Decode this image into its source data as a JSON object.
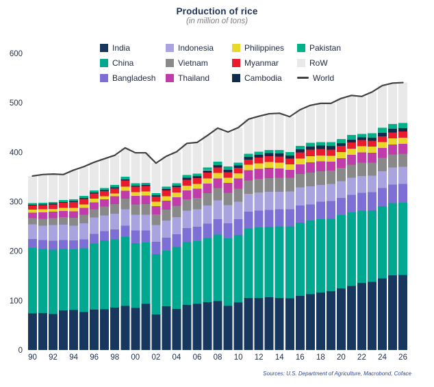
{
  "title": "Production of rice",
  "subtitle": "(in million of tons)",
  "source": "Sources: U.S. Department of Agriculture, Macrobond, Coface",
  "legend": [
    {
      "label": "India",
      "color": "#17375e",
      "type": "swatch"
    },
    {
      "label": "Indonesia",
      "color": "#a9a4e0",
      "type": "swatch"
    },
    {
      "label": "Philippines",
      "color": "#e8d829",
      "type": "swatch"
    },
    {
      "label": "Pakistan",
      "color": "#00b189",
      "type": "swatch"
    },
    {
      "label": "China",
      "color": "#00a88f",
      "type": "swatch"
    },
    {
      "label": "Vietnam",
      "color": "#898989",
      "type": "swatch"
    },
    {
      "label": "Myanmar",
      "color": "#e91c2e",
      "type": "swatch"
    },
    {
      "label": "RoW",
      "color": "#e9e9e9",
      "type": "swatch"
    },
    {
      "label": "Bangladesh",
      "color": "#7d6fd6",
      "type": "swatch"
    },
    {
      "label": "Thailand",
      "color": "#c03cab",
      "type": "swatch"
    },
    {
      "label": "Cambodia",
      "color": "#0f2b4c",
      "type": "swatch"
    },
    {
      "label": "World",
      "color": "#404040",
      "type": "line"
    }
  ],
  "chart_data": {
    "type": "bar",
    "stacked": true,
    "title": "Production of rice",
    "subtitle": "(in million of tons)",
    "ylabel": "",
    "xlabel": "",
    "ylim": [
      0,
      600
    ],
    "yticks": [
      0,
      100,
      200,
      300,
      400,
      500,
      600
    ],
    "grid": false,
    "legend_position": "top",
    "x": [
      1990,
      1991,
      1992,
      1993,
      1994,
      1995,
      1996,
      1997,
      1998,
      1999,
      2000,
      2001,
      2002,
      2003,
      2004,
      2005,
      2006,
      2007,
      2008,
      2009,
      2010,
      2011,
      2012,
      2013,
      2014,
      2015,
      2016,
      2017,
      2018,
      2019,
      2020,
      2021,
      2022,
      2023,
      2024,
      2025,
      2026
    ],
    "x_tick_every": 2,
    "series": [
      {
        "name": "India",
        "color": "#17375e",
        "values": [
          74.3,
          74.7,
          72.6,
          80.3,
          81.2,
          77.0,
          81.7,
          82.5,
          86.1,
          89.7,
          85.0,
          93.3,
          71.8,
          88.5,
          83.1,
          91.8,
          93.4,
          96.7,
          99.2,
          89.1,
          96.0,
          105.3,
          105.2,
          106.6,
          105.5,
          104.4,
          109.7,
          112.8,
          116.5,
          118.9,
          124.4,
          129.5,
          135.8,
          137.8,
          145.0,
          151.0,
          152.0
        ]
      },
      {
        "name": "China",
        "color": "#00a88f",
        "values": [
          132.5,
          129.5,
          130.4,
          124.1,
          122.5,
          129.0,
          134.0,
          138.9,
          137.8,
          138.9,
          131.5,
          124.3,
          122.2,
          112.5,
          125.4,
          126.4,
          127.2,
          130.2,
          134.3,
          136.6,
          137.0,
          140.7,
          143.0,
          142.5,
          144.6,
          145.8,
          147.8,
          148.9,
          148.5,
          146.7,
          148.3,
          148.9,
          145.9,
          144.6,
          146.0,
          146.0,
          146.0
        ]
      },
      {
        "name": "Bangladesh",
        "color": "#7d6fd6",
        "values": [
          17.9,
          18.3,
          18.3,
          18.0,
          17.8,
          17.7,
          18.9,
          18.9,
          19.9,
          23.1,
          25.1,
          24.3,
          25.2,
          26.2,
          25.6,
          28.8,
          29.0,
          28.8,
          31.2,
          31.0,
          31.7,
          33.7,
          33.8,
          34.4,
          34.5,
          34.6,
          34.6,
          32.7,
          34.9,
          35.9,
          34.6,
          35.8,
          36.4,
          37.0,
          37.0,
          37.6,
          38.0
        ]
      },
      {
        "name": "Indonesia",
        "color": "#a9a4e0",
        "values": [
          29.4,
          29.0,
          31.4,
          31.0,
          30.3,
          33.0,
          33.2,
          32.1,
          32.0,
          33.4,
          32.4,
          32.0,
          33.4,
          35.0,
          34.8,
          34.9,
          35.3,
          37.0,
          38.3,
          36.4,
          35.5,
          36.5,
          36.6,
          36.3,
          35.6,
          36.2,
          36.9,
          37.0,
          34.2,
          34.7,
          34.5,
          34.4,
          34.0,
          33.0,
          34.0,
          34.5,
          34.6
        ]
      },
      {
        "name": "Vietnam",
        "color": "#898989",
        "values": [
          12.4,
          13.9,
          14.3,
          15.2,
          15.5,
          16.9,
          17.0,
          17.6,
          19.4,
          20.9,
          20.5,
          21.0,
          21.5,
          22.1,
          22.7,
          22.8,
          22.9,
          24.4,
          24.4,
          25.0,
          26.4,
          27.1,
          27.5,
          28.2,
          28.2,
          27.6,
          27.4,
          27.7,
          27.3,
          27.1,
          27.1,
          26.5,
          27.0,
          26.6,
          26.5,
          26.5,
          26.3
        ]
      },
      {
        "name": "Thailand",
        "color": "#c03cab",
        "values": [
          11.3,
          13.2,
          13.0,
          12.7,
          13.5,
          14.0,
          13.9,
          14.8,
          15.6,
          16.5,
          17.0,
          17.5,
          17.2,
          18.0,
          17.4,
          18.2,
          18.3,
          19.8,
          19.9,
          20.3,
          20.3,
          20.5,
          20.2,
          20.5,
          18.8,
          15.8,
          19.2,
          20.6,
          20.3,
          17.7,
          18.9,
          19.9,
          20.9,
          20.0,
          20.1,
          20.4,
          20.5
        ]
      },
      {
        "name": "Philippines",
        "color": "#e8d829",
        "values": [
          6.1,
          6.2,
          5.8,
          6.0,
          6.9,
          7.0,
          7.4,
          6.5,
          5.5,
          7.7,
          8.0,
          8.4,
          8.5,
          8.8,
          9.4,
          9.8,
          10.0,
          10.5,
          10.8,
          9.8,
          10.5,
          10.7,
          11.4,
          11.9,
          12.0,
          11.0,
          11.7,
          12.2,
          11.7,
          11.9,
          12.4,
          12.5,
          12.4,
          12.7,
          12.0,
          12.3,
          12.4
        ]
      },
      {
        "name": "Myanmar",
        "color": "#e91c2e",
        "values": [
          8.6,
          8.1,
          9.0,
          10.4,
          11.6,
          11.1,
          10.4,
          9.9,
          10.6,
          12.5,
          10.8,
          10.8,
          10.8,
          11.8,
          11.5,
          11.9,
          11.6,
          11.7,
          11.2,
          11.6,
          11.1,
          11.0,
          11.7,
          11.9,
          12.6,
          12.2,
          12.6,
          13.2,
          13.2,
          12.7,
          12.6,
          12.4,
          12.0,
          11.8,
          12.0,
          12.0,
          12.0
        ]
      },
      {
        "name": "Cambodia",
        "color": "#0f2b4c",
        "values": [
          1.6,
          1.6,
          1.5,
          1.7,
          2.0,
          2.2,
          2.2,
          2.2,
          2.4,
          2.6,
          2.5,
          2.6,
          2.4,
          3.0,
          2.6,
          3.8,
          4.0,
          4.3,
          4.6,
          4.7,
          5.2,
          5.5,
          5.7,
          5.9,
          5.9,
          5.9,
          6.0,
          6.3,
          6.7,
          7.3,
          5.9,
          5.7,
          5.8,
          6.0,
          7.0,
          7.3,
          7.4
        ]
      },
      {
        "name": "Pakistan",
        "color": "#00b189",
        "values": [
          3.3,
          3.2,
          3.1,
          4.0,
          3.4,
          4.0,
          4.3,
          4.3,
          4.7,
          5.2,
          4.8,
          3.9,
          4.5,
          4.8,
          5.0,
          5.5,
          5.4,
          5.6,
          6.9,
          6.8,
          5.0,
          6.2,
          5.8,
          6.7,
          7.0,
          6.8,
          6.8,
          7.5,
          7.3,
          7.4,
          8.4,
          9.3,
          7.3,
          9.0,
          9.9,
          10.0,
          10.2
        ]
      }
    ],
    "remainder_series": {
      "name": "RoW",
      "color": "#e9e9e9",
      "rule": "world_total_minus_listed_countries"
    },
    "line_series": {
      "name": "World",
      "color": "#404040",
      "values": [
        352,
        355,
        356,
        355,
        364,
        371,
        380,
        387,
        394,
        409,
        399,
        399,
        378,
        392,
        401,
        418,
        420,
        434,
        449,
        441,
        450,
        467,
        473,
        478,
        479,
        472,
        486,
        495,
        499,
        499,
        509,
        515,
        513,
        522,
        535,
        540,
        541
      ]
    }
  }
}
